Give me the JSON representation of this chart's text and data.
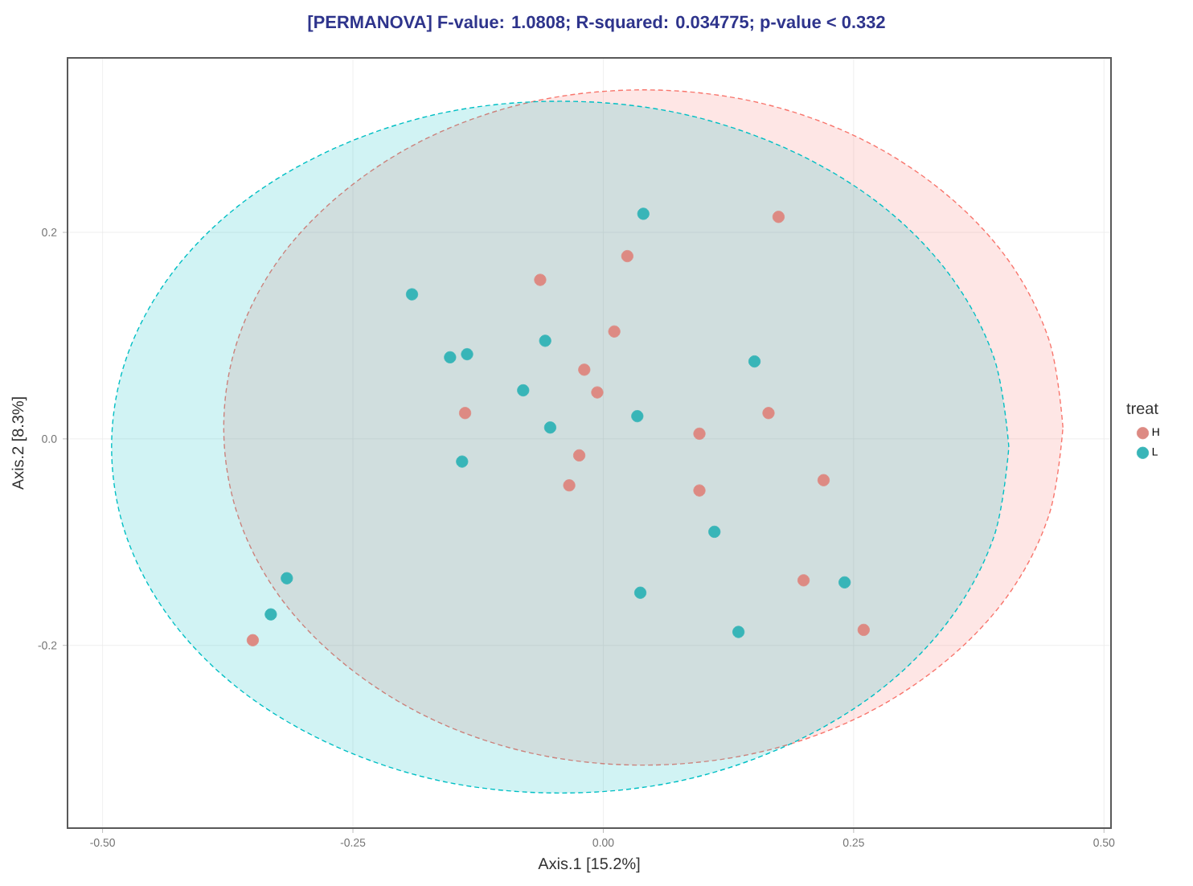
{
  "chart_data": {
    "type": "scatter",
    "title": "[PERMANOVA] F-value: 1.0808; R-squared: 0.034775; p-value < 0.332",
    "xlabel": "Axis.1   [15.2%]",
    "ylabel": "Axis.2   [8.3%]",
    "legend_title": "treat",
    "xlim": [
      -0.535,
      0.507
    ],
    "ylim": [
      -0.377,
      0.369
    ],
    "xticks": [
      {
        "value": -0.5,
        "label": "-0.50"
      },
      {
        "value": -0.25,
        "label": "-0.25"
      },
      {
        "value": 0,
        "label": "0.00"
      },
      {
        "value": 0.25,
        "label": "0.25"
      },
      {
        "value": 0.5,
        "label": "0.50"
      }
    ],
    "yticks": [
      -0.2,
      {
        "value": 0,
        "label": "0.0"
      },
      0.2
    ],
    "grid": true,
    "legend": "right",
    "series": [
      {
        "type": "area",
        "color": "#f8766d",
        "line_style": "dashed",
        "x": [
          0.459,
          0.445,
          0.403,
          0.336,
          0.25,
          0.149,
          0.04,
          -0.069,
          -0.17,
          -0.256,
          -0.323,
          -0.365,
          -0.379,
          -0.365,
          -0.323,
          -0.256,
          -0.17,
          -0.069,
          0.04,
          0.149,
          0.25,
          0.336,
          0.403,
          0.445,
          0.459
        ],
        "values": [
          0.011,
          0.096,
          0.175,
          0.242,
          0.294,
          0.327,
          0.338,
          0.327,
          0.294,
          0.242,
          0.175,
          0.096,
          0.011,
          -0.074,
          -0.153,
          -0.22,
          -0.272,
          -0.305,
          -0.316,
          -0.305,
          -0.272,
          -0.22,
          -0.153,
          -0.074,
          0.011
        ]
      },
      {
        "type": "area",
        "color": "#00bfc4",
        "line_style": "dashed",
        "x": [
          0.405,
          0.39,
          0.345,
          0.274,
          0.181,
          0.073,
          -0.043,
          -0.159,
          -0.267,
          -0.36,
          -0.431,
          -0.476,
          -0.491,
          -0.476,
          -0.431,
          -0.36,
          -0.267,
          -0.159,
          -0.043,
          0.073,
          0.181,
          0.274,
          0.345,
          0.39,
          0.405
        ],
        "values": [
          -0.008,
          0.079,
          0.16,
          0.229,
          0.282,
          0.316,
          0.327,
          0.316,
          0.282,
          0.229,
          0.16,
          0.079,
          -0.008,
          -0.095,
          -0.176,
          -0.245,
          -0.298,
          -0.332,
          -0.343,
          -0.332,
          -0.298,
          -0.245,
          -0.176,
          -0.095,
          -0.008
        ]
      },
      {
        "type": "scatter",
        "name": "H",
        "color": "#dd8a83",
        "x": [
          0.175,
          0.024,
          -0.063,
          0.011,
          -0.019,
          -0.006,
          -0.138,
          0.165,
          0.096,
          -0.024,
          -0.034,
          0.096,
          0.22,
          0.2,
          0.26,
          -0.35
        ],
        "values": [
          0.215,
          0.177,
          0.154,
          0.104,
          0.067,
          0.045,
          0.025,
          0.025,
          0.005,
          -0.016,
          -0.045,
          -0.05,
          -0.04,
          -0.137,
          -0.185,
          -0.195
        ]
      },
      {
        "type": "scatter",
        "name": "L",
        "color": "#38b5b8",
        "x": [
          0.04,
          -0.191,
          -0.153,
          -0.136,
          -0.058,
          -0.08,
          -0.053,
          0.034,
          0.151,
          -0.141,
          0.111,
          0.037,
          0.135,
          0.241,
          -0.316,
          -0.332
        ],
        "values": [
          0.218,
          0.14,
          0.079,
          0.082,
          0.095,
          0.047,
          0.011,
          0.022,
          0.075,
          -0.022,
          -0.09,
          -0.149,
          -0.187,
          -0.139,
          -0.135,
          -0.17
        ]
      }
    ]
  }
}
